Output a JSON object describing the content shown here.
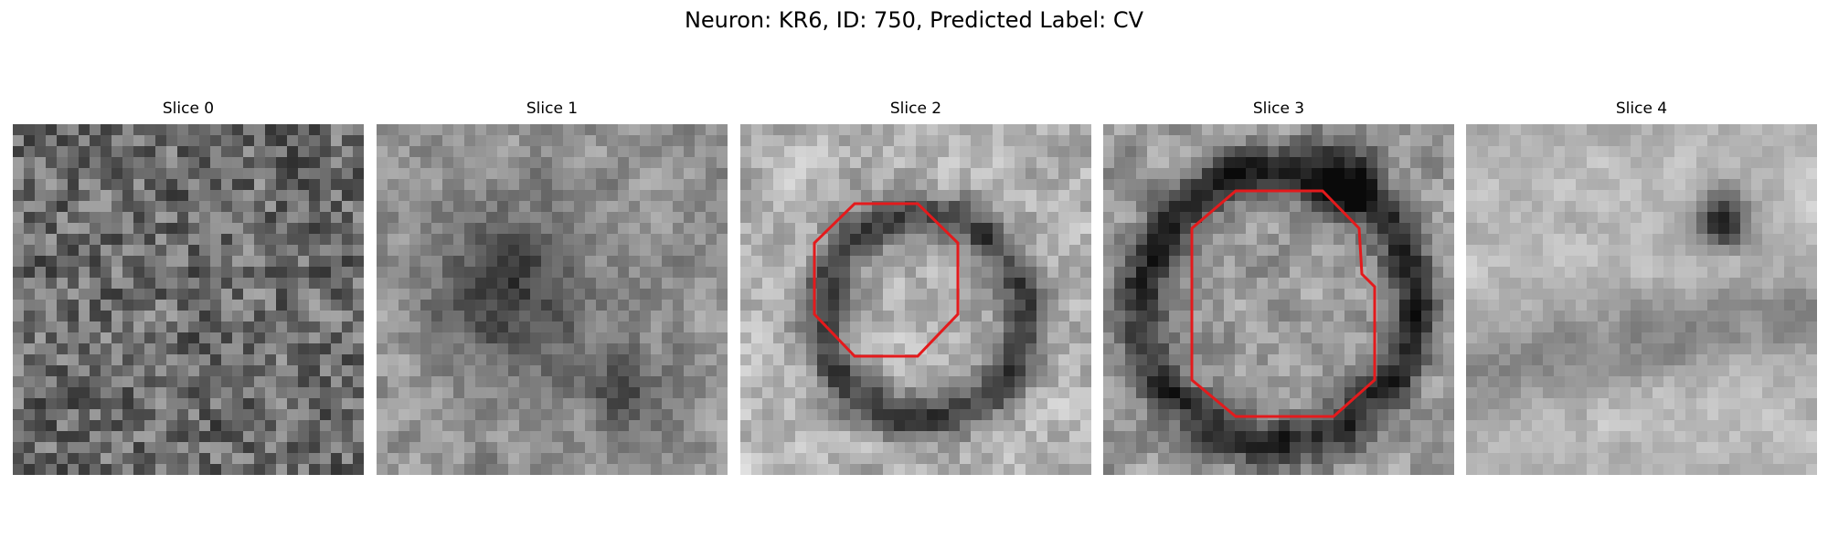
{
  "figure": {
    "title": "Neuron: KR6, ID: 750, Predicted Label: CV"
  },
  "panels": [
    {
      "title": "Slice 0",
      "seed": 11,
      "base": 0.42,
      "spread": 0.55,
      "smooth": 0.25,
      "has_contour": false
    },
    {
      "title": "Slice 1",
      "seed": 23,
      "base": 0.58,
      "spread": 0.45,
      "smooth": 0.6,
      "has_contour": false
    },
    {
      "title": "Slice 2",
      "seed": 37,
      "base": 0.65,
      "spread": 0.45,
      "smooth": 0.55,
      "has_contour": true
    },
    {
      "title": "Slice 3",
      "seed": 41,
      "base": 0.6,
      "spread": 0.45,
      "smooth": 0.55,
      "has_contour": true
    },
    {
      "title": "Slice 4",
      "seed": 53,
      "base": 0.72,
      "spread": 0.35,
      "smooth": 0.7,
      "has_contour": false
    }
  ],
  "colors": {
    "contour": "#e41a1c"
  }
}
